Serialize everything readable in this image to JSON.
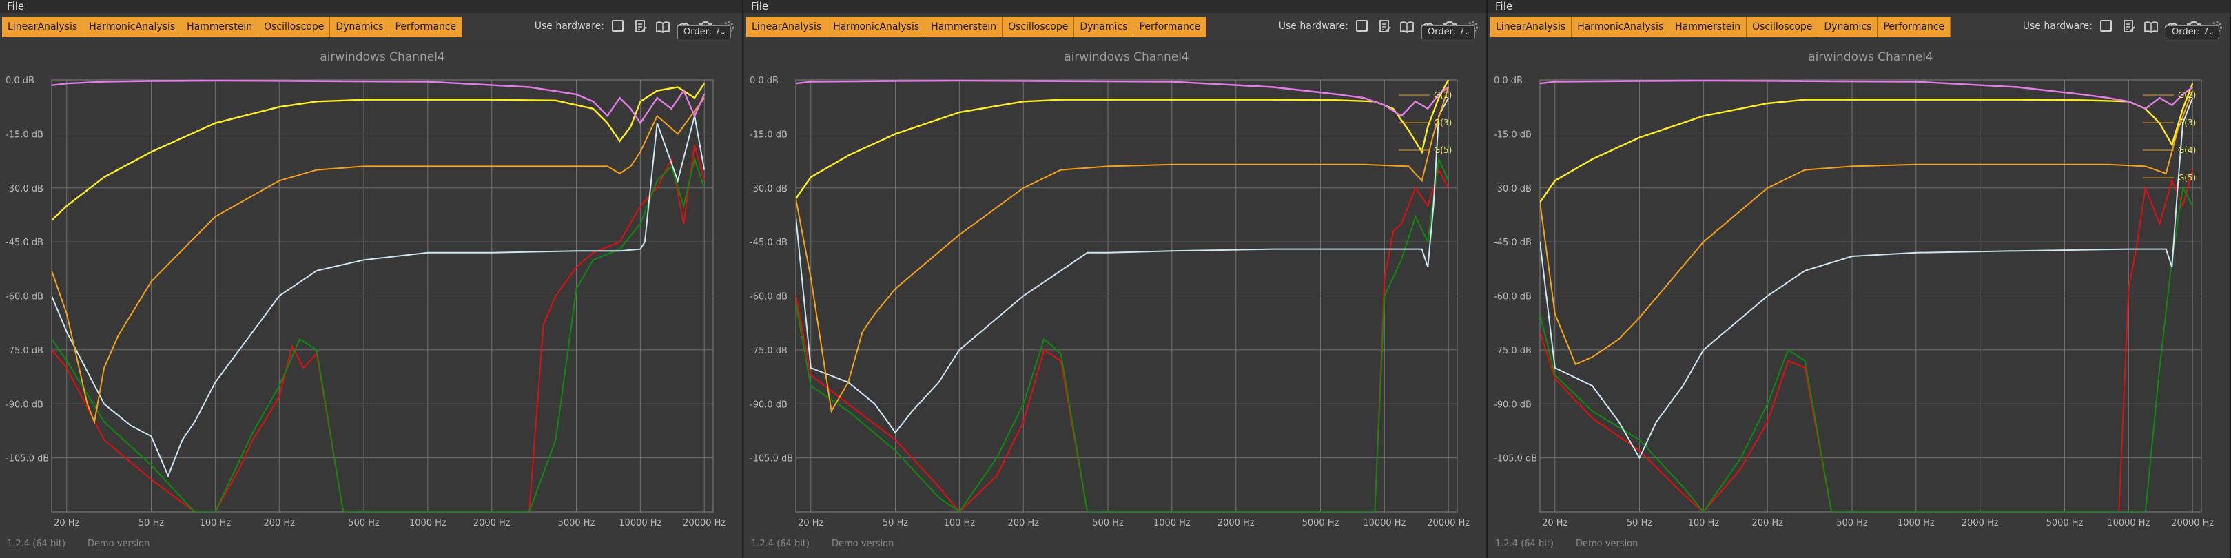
{
  "panels": [
    {
      "menu": {
        "file": "File"
      },
      "tabs": [
        "LinearAnalysis",
        "HarmonicAnalysis",
        "Hammerstein",
        "Oscilloscope",
        "Dynamics",
        "Performance"
      ],
      "use_hardware_label": "Use hardware:",
      "order_label": "Order: 7",
      "footer_version": "1.2.4 (64 bit)",
      "footer_demo": "Demo version"
    },
    {
      "menu": {
        "file": "File"
      },
      "tabs": [
        "LinearAnalysis",
        "HarmonicAnalysis",
        "Hammerstein",
        "Oscilloscope",
        "Dynamics",
        "Performance"
      ],
      "use_hardware_label": "Use hardware:",
      "order_label": "Order: 7",
      "footer_version": "1.2.4 (64 bit)",
      "footer_demo": "Demo version"
    },
    {
      "menu": {
        "file": "File"
      },
      "tabs": [
        "LinearAnalysis",
        "HarmonicAnalysis",
        "Hammerstein",
        "Oscilloscope",
        "Dynamics",
        "Performance"
      ],
      "use_hardware_label": "Use hardware:",
      "order_label": "Order: 7",
      "footer_version": "1.2.4 (64 bit)",
      "footer_demo": "Demo version"
    }
  ],
  "colors": {
    "tab": "#f0a030",
    "plot_bg": "#393939",
    "grid": "#6e6e6e",
    "pink": "#e27ee6",
    "yellow": "#ffee22",
    "orange": "#f4a21c",
    "lightblue": "#cde7f2",
    "red": "#e01010",
    "green": "#0f8a0f"
  },
  "chart_data": [
    {
      "type": "line",
      "title": "airwindows Channel4",
      "x_ticks": [
        20,
        50,
        100,
        200,
        500,
        1000,
        2000,
        5000,
        10000,
        20000
      ],
      "x_tick_labels": [
        "20 Hz",
        "50 Hz",
        "100 Hz",
        "200 Hz",
        "500 Hz",
        "1000 Hz",
        "2000 Hz",
        "5000 Hz",
        "10000 Hz",
        "20000 Hz"
      ],
      "y_ticks": [
        0,
        -15,
        -30,
        -45,
        -60,
        -75,
        -90,
        -105
      ],
      "y_tick_labels": [
        "0.0 dB",
        "-15.0 dB",
        "-30.0 dB",
        "-45.0 dB",
        "-60.0 dB",
        "-75.0 dB",
        "-90.0 dB",
        "-105.0 dB"
      ],
      "xlim": [
        17,
        22000
      ],
      "ylim": [
        -120,
        0
      ],
      "xscale": "log",
      "grid": true,
      "series": [
        {
          "color": "pink",
          "x": [
            17,
            20,
            30,
            50,
            100,
            1000,
            3000,
            5000,
            6000,
            7000,
            8000,
            9000,
            10000,
            12000,
            14000,
            16000,
            18000,
            20000
          ],
          "y": [
            -1.5,
            -1,
            -0.5,
            -0.3,
            -0.2,
            -0.5,
            -2,
            -4,
            -6,
            -10,
            -5,
            -8,
            -12,
            -5,
            -8,
            -3,
            -10,
            -4
          ]
        },
        {
          "color": "yellow",
          "x": [
            17,
            20,
            30,
            50,
            100,
            200,
            300,
            500,
            1000,
            2000,
            4000,
            6000,
            7000,
            8000,
            9000,
            10000,
            12000,
            15000,
            18000,
            20000
          ],
          "y": [
            -39,
            -35,
            -27,
            -20,
            -12,
            -7.5,
            -6,
            -5.5,
            -5.5,
            -5.5,
            -5.7,
            -8,
            -12,
            -17,
            -13,
            -6,
            -3,
            -2,
            -5,
            -1
          ]
        },
        {
          "color": "orange",
          "x": [
            17,
            20,
            25,
            27,
            30,
            35,
            50,
            100,
            200,
            300,
            500,
            1000,
            2000,
            5000,
            7000,
            8000,
            9000,
            10000,
            12000,
            15000,
            20000
          ],
          "y": [
            -53,
            -65,
            -90,
            -95,
            -80,
            -71,
            -56,
            -38,
            -28,
            -25,
            -24,
            -24,
            -24,
            -24,
            -24,
            -26,
            -24,
            -20,
            -10,
            -15,
            -5
          ]
        },
        {
          "color": "lightblue",
          "x": [
            17,
            20,
            30,
            40,
            50,
            60,
            70,
            80,
            100,
            150,
            200,
            300,
            500,
            1000,
            2000,
            5000,
            8000,
            10000,
            10500,
            12000,
            15000,
            18000,
            20000
          ],
          "y": [
            -60,
            -70,
            -90,
            -96,
            -99,
            -110,
            -100,
            -95,
            -84,
            -70,
            -60,
            -53,
            -50,
            -48,
            -48,
            -47.5,
            -47.5,
            -47,
            -45,
            -12,
            -28,
            -10,
            -25
          ]
        },
        {
          "color": "red",
          "x": [
            17,
            20,
            30,
            50,
            80,
            100,
            130,
            150,
            170,
            200,
            230,
            260,
            300,
            400,
            500,
            3000,
            3500,
            4000,
            5000,
            6000,
            8000,
            10000,
            12000,
            14000,
            16000,
            18000,
            20000
          ],
          "y": [
            -75,
            -80,
            -100,
            -111,
            -120,
            -120,
            -108,
            -100,
            -95,
            -88,
            -74,
            -80,
            -76,
            -120,
            -120,
            -120,
            -68,
            -60,
            -52,
            -48,
            -45,
            -35,
            -30,
            -22,
            -40,
            -18,
            -28
          ]
        },
        {
          "color": "green",
          "x": [
            17,
            20,
            30,
            50,
            80,
            100,
            150,
            200,
            250,
            300,
            400,
            500,
            3000,
            4000,
            5000,
            6000,
            8000,
            10000,
            12000,
            14000,
            16000,
            18000,
            20000
          ],
          "y": [
            -72,
            -78,
            -95,
            -107,
            -120,
            -120,
            -98,
            -85,
            -72,
            -75,
            -120,
            -120,
            -120,
            -100,
            -58,
            -50,
            -47,
            -40,
            -28,
            -24,
            -35,
            -22,
            -30
          ]
        }
      ]
    },
    {
      "type": "line",
      "title": "airwindows Channel4",
      "x_ticks": [
        20,
        50,
        100,
        200,
        500,
        1000,
        2000,
        5000,
        10000,
        20000
      ],
      "x_tick_labels": [
        "20 Hz",
        "50 Hz",
        "100 Hz",
        "200 Hz",
        "500 Hz",
        "1000 Hz",
        "2000 Hz",
        "5000 Hz",
        "10000 Hz",
        "20000 Hz"
      ],
      "y_ticks": [
        0,
        -15,
        -30,
        -45,
        -60,
        -75,
        -90,
        -105
      ],
      "y_tick_labels": [
        "0.0 dB",
        "-15.0 dB",
        "-30.0 dB",
        "-45.0 dB",
        "-60.0 dB",
        "-75.0 dB",
        "-90.0 dB",
        "-105.0 dB"
      ],
      "xlim": [
        17,
        22000
      ],
      "ylim": [
        -120,
        0
      ],
      "xscale": "log",
      "grid": true,
      "legend_labels": [
        "G(1)",
        "G(3)",
        "G(5)"
      ],
      "series": [
        {
          "color": "pink",
          "x": [
            17,
            20,
            50,
            100,
            1000,
            3000,
            6000,
            8000,
            10000,
            12000,
            14000,
            16000,
            18000,
            20000
          ],
          "y": [
            -1,
            -0.5,
            -0.3,
            -0.2,
            -0.5,
            -2,
            -4,
            -5,
            -7,
            -10,
            -6,
            -8,
            -4,
            -2
          ]
        },
        {
          "color": "yellow",
          "x": [
            17,
            20,
            30,
            50,
            100,
            200,
            300,
            500,
            1000,
            3000,
            6000,
            9000,
            11000,
            13000,
            15000,
            16000,
            18000,
            20000
          ],
          "y": [
            -33,
            -27,
            -21,
            -15,
            -9,
            -6,
            -5.5,
            -5.5,
            -5.5,
            -5.5,
            -5.6,
            -6,
            -8,
            -14,
            -20,
            -13,
            -5,
            0
          ]
        },
        {
          "color": "orange",
          "x": [
            17,
            20,
            25,
            30,
            35,
            40,
            50,
            100,
            200,
            300,
            500,
            1000,
            3000,
            8000,
            13000,
            15000,
            17000,
            20000
          ],
          "y": [
            -33,
            -55,
            -92,
            -84,
            -70,
            -65,
            -58,
            -43,
            -30,
            -25,
            -24,
            -23.5,
            -23.5,
            -23.5,
            -24,
            -28,
            -15,
            -2
          ]
        },
        {
          "color": "lightblue",
          "x": [
            17,
            20,
            30,
            40,
            50,
            60,
            80,
            100,
            200,
            300,
            400,
            500,
            1000,
            3000,
            10000,
            15000,
            16000,
            17000,
            18000,
            20000
          ],
          "y": [
            -38,
            -80,
            -84,
            -90,
            -98,
            -92,
            -84,
            -75,
            -60,
            -53,
            -48,
            -48,
            -47.5,
            -47,
            -47,
            -47,
            -52,
            -35,
            -10,
            -5
          ]
        },
        {
          "color": "red",
          "x": [
            17,
            20,
            30,
            50,
            80,
            100,
            150,
            200,
            250,
            300,
            400,
            500,
            9000,
            10000,
            11000,
            12000,
            14000,
            16000,
            18000,
            20000
          ],
          "y": [
            -60,
            -82,
            -90,
            -100,
            -113,
            -120,
            -110,
            -95,
            -75,
            -78,
            -120,
            -120,
            -120,
            -55,
            -42,
            -40,
            -30,
            -35,
            -25,
            -30
          ]
        },
        {
          "color": "green",
          "x": [
            17,
            20,
            30,
            50,
            80,
            100,
            150,
            200,
            250,
            300,
            400,
            500,
            9000,
            10000,
            12000,
            14000,
            16000,
            18000,
            20000
          ],
          "y": [
            -62,
            -85,
            -92,
            -103,
            -116,
            -120,
            -105,
            -90,
            -72,
            -76,
            -120,
            -120,
            -120,
            -60,
            -50,
            -38,
            -45,
            -22,
            -28
          ]
        }
      ]
    },
    {
      "type": "line",
      "title": "airwindows Channel4",
      "x_ticks": [
        20,
        50,
        100,
        200,
        500,
        1000,
        2000,
        5000,
        10000,
        20000
      ],
      "x_tick_labels": [
        "20 Hz",
        "50 Hz",
        "100 Hz",
        "200 Hz",
        "500 Hz",
        "1000 Hz",
        "2000 Hz",
        "5000 Hz",
        "10000 Hz",
        "20000 Hz"
      ],
      "y_ticks": [
        0,
        -15,
        -30,
        -45,
        -60,
        -75,
        -90,
        -105
      ],
      "y_tick_labels": [
        "0.0 dB",
        "-15.0 dB",
        "-30.0 dB",
        "-45.0 dB",
        "-60.0 dB",
        "-75.0 dB",
        "-90.0 dB",
        "-105.0 dB"
      ],
      "xlim": [
        17,
        22000
      ],
      "ylim": [
        -120,
        0
      ],
      "xscale": "log",
      "grid": true,
      "legend_labels": [
        "G(2)",
        "G(3)",
        "G(4)",
        "G(5)"
      ],
      "series": [
        {
          "color": "pink",
          "x": [
            17,
            20,
            50,
            100,
            1000,
            3000,
            6000,
            8000,
            10000,
            12000,
            14000,
            16000,
            18000,
            20000
          ],
          "y": [
            -1,
            -0.5,
            -0.3,
            -0.2,
            -0.5,
            -2,
            -4,
            -5,
            -6,
            -8,
            -5,
            -7,
            -4,
            -2
          ]
        },
        {
          "color": "yellow",
          "x": [
            17,
            20,
            30,
            50,
            100,
            200,
            300,
            500,
            1000,
            3000,
            6000,
            10000,
            12000,
            14000,
            16000,
            18000,
            20000
          ],
          "y": [
            -34,
            -28,
            -22,
            -16,
            -10,
            -6.5,
            -5.5,
            -5.5,
            -5.5,
            -5.5,
            -5.6,
            -6,
            -8,
            -12,
            -18,
            -8,
            -1
          ]
        },
        {
          "color": "orange",
          "x": [
            17,
            20,
            25,
            30,
            40,
            50,
            100,
            200,
            300,
            500,
            1000,
            3000,
            8000,
            12000,
            15000,
            17000,
            20000
          ],
          "y": [
            -34,
            -65,
            -79,
            -77,
            -72,
            -66,
            -45,
            -30,
            -25,
            -24,
            -23.5,
            -23.5,
            -23.5,
            -24,
            -26,
            -14,
            -3
          ]
        },
        {
          "color": "lightblue",
          "x": [
            17,
            20,
            30,
            40,
            50,
            60,
            80,
            100,
            200,
            300,
            500,
            1000,
            3000,
            10000,
            15000,
            16000,
            17000,
            18000,
            20000
          ],
          "y": [
            -45,
            -80,
            -85,
            -95,
            -105,
            -95,
            -85,
            -75,
            -60,
            -53,
            -49,
            -48,
            -47.5,
            -47,
            -47,
            -52,
            -30,
            -12,
            -5
          ]
        },
        {
          "color": "red",
          "x": [
            17,
            20,
            30,
            50,
            80,
            100,
            150,
            200,
            250,
            300,
            400,
            500,
            9000,
            10000,
            11000,
            12000,
            14000,
            16000,
            18000,
            20000
          ],
          "y": [
            -70,
            -83,
            -94,
            -103,
            -115,
            -120,
            -108,
            -95,
            -78,
            -80,
            -120,
            -120,
            -120,
            -58,
            -45,
            -30,
            -40,
            -28,
            -35,
            -25
          ]
        },
        {
          "color": "green",
          "x": [
            17,
            20,
            30,
            50,
            80,
            100,
            150,
            200,
            250,
            300,
            400,
            500,
            12000,
            14000,
            16000,
            18000,
            20000
          ],
          "y": [
            -65,
            -82,
            -92,
            -100,
            -113,
            -120,
            -105,
            -90,
            -75,
            -78,
            -120,
            -120,
            -120,
            -80,
            -50,
            -30,
            -35
          ]
        }
      ]
    }
  ]
}
